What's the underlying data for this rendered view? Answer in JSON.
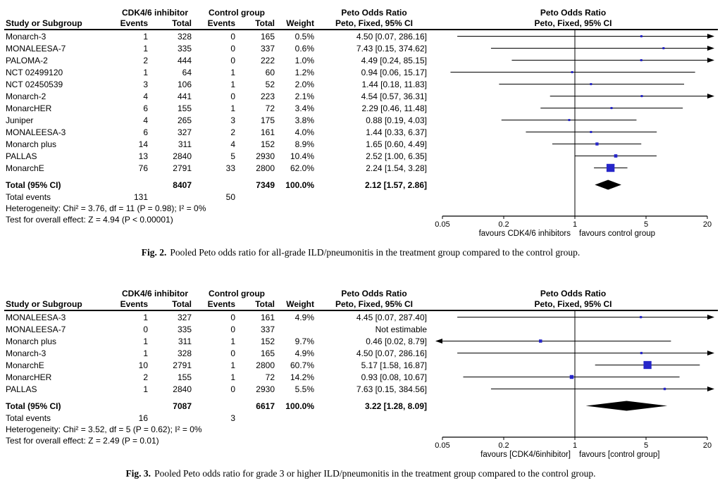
{
  "marker_color": "#2626c9",
  "diamond_color": "#000000",
  "chart_data": [
    {
      "type": "forest",
      "fig_label": "Fig. 2.",
      "caption": "Pooled Peto odds ratio for all-grade ILD/pneumonitis in the treatment group compared to the control group.",
      "columns": {
        "study": "Study or Subgroup",
        "group1": "CDK4/6 inhibitor",
        "group2": "Control group",
        "events": "Events",
        "total": "Total",
        "weight": "Weight",
        "or_header": "Peto Odds Ratio",
        "or_subheader": "Peto, Fixed, 95% CI"
      },
      "axis": {
        "scale": "log",
        "min": 0.05,
        "max": 20,
        "ticks": [
          0.05,
          0.2,
          1,
          5,
          20
        ],
        "favours_left": "favours CDK4/6 inhibitors",
        "favours_right": "favours control group"
      },
      "studies": [
        {
          "name": "Monarch-3",
          "events1": "1",
          "total1": "328",
          "events2": "0",
          "total2": "165",
          "weight": "0.5%",
          "w": 0.5,
          "or": 4.5,
          "lo": 0.07,
          "hi": 286.16,
          "ci_text": "4.50 [0.07, 286.16]"
        },
        {
          "name": "MONALEESA-7",
          "events1": "1",
          "total1": "335",
          "events2": "0",
          "total2": "337",
          "weight": "0.6%",
          "w": 0.6,
          "or": 7.43,
          "lo": 0.15,
          "hi": 374.62,
          "ci_text": "7.43 [0.15, 374.62]"
        },
        {
          "name": "PALOMA-2",
          "events1": "2",
          "total1": "444",
          "events2": "0",
          "total2": "222",
          "weight": "1.0%",
          "w": 1.0,
          "or": 4.49,
          "lo": 0.24,
          "hi": 85.15,
          "ci_text": "4.49 [0.24, 85.15]"
        },
        {
          "name": "NCT 02499120",
          "events1": "1",
          "total1": "64",
          "events2": "1",
          "total2": "60",
          "weight": "1.2%",
          "w": 1.2,
          "or": 0.94,
          "lo": 0.06,
          "hi": 15.17,
          "ci_text": "0.94 [0.06, 15.17]"
        },
        {
          "name": "NCT 02450539",
          "events1": "3",
          "total1": "106",
          "events2": "1",
          "total2": "52",
          "weight": "2.0%",
          "w": 2.0,
          "or": 1.44,
          "lo": 0.18,
          "hi": 11.83,
          "ci_text": "1.44 [0.18, 11.83]"
        },
        {
          "name": "Monarch-2",
          "events1": "4",
          "total1": "441",
          "events2": "0",
          "total2": "223",
          "weight": "2.1%",
          "w": 2.1,
          "or": 4.54,
          "lo": 0.57,
          "hi": 36.31,
          "ci_text": "4.54 [0.57, 36.31]"
        },
        {
          "name": "MonarcHER",
          "events1": "6",
          "total1": "155",
          "events2": "1",
          "total2": "72",
          "weight": "3.4%",
          "w": 3.4,
          "or": 2.29,
          "lo": 0.46,
          "hi": 11.48,
          "ci_text": "2.29 [0.46, 11.48]"
        },
        {
          "name": "Juniper",
          "events1": "4",
          "total1": "265",
          "events2": "3",
          "total2": "175",
          "weight": "3.8%",
          "w": 3.8,
          "or": 0.88,
          "lo": 0.19,
          "hi": 4.03,
          "ci_text": "0.88 [0.19, 4.03]"
        },
        {
          "name": "MONALEESA-3",
          "events1": "6",
          "total1": "327",
          "events2": "2",
          "total2": "161",
          "weight": "4.0%",
          "w": 4.0,
          "or": 1.44,
          "lo": 0.33,
          "hi": 6.37,
          "ci_text": "1.44 [0.33, 6.37]"
        },
        {
          "name": "Monarch plus",
          "events1": "14",
          "total1": "311",
          "events2": "4",
          "total2": "152",
          "weight": "8.9%",
          "w": 8.9,
          "or": 1.65,
          "lo": 0.6,
          "hi": 4.49,
          "ci_text": "1.65 [0.60, 4.49]"
        },
        {
          "name": "PALLAS",
          "events1": "13",
          "total1": "2840",
          "events2": "5",
          "total2": "2930",
          "weight": "10.4%",
          "w": 10.4,
          "or": 2.52,
          "lo": 1.0,
          "hi": 6.35,
          "ci_text": "2.52 [1.00, 6.35]"
        },
        {
          "name": "MonarchE",
          "events1": "76",
          "total1": "2791",
          "events2": "33",
          "total2": "2800",
          "weight": "62.0%",
          "w": 62.0,
          "or": 2.24,
          "lo": 1.54,
          "hi": 3.28,
          "ci_text": "2.24 [1.54, 3.28]"
        }
      ],
      "total": {
        "label": "Total (95% CI)",
        "total1": "8407",
        "total2": "7349",
        "weight": "100.0%",
        "or": 2.12,
        "lo": 1.57,
        "hi": 2.86,
        "ci_text": "2.12 [1.57, 2.86]"
      },
      "total_events": {
        "label": "Total events",
        "v1": "131",
        "v2": "50"
      },
      "heterogeneity": "Heterogeneity: Chi² = 3.76, df = 11 (P = 0.98); I² = 0%",
      "overall_effect": "Test for overall effect: Z = 4.94 (P < 0.00001)"
    },
    {
      "type": "forest",
      "fig_label": "Fig. 3.",
      "caption": "Pooled Peto odds ratio for grade 3 or higher ILD/pneumonitis in the treatment group compared to the control group.",
      "columns": {
        "study": "Study or Subgroup",
        "group1": "CDK4/6 inhibitor",
        "group2": "Control group",
        "events": "Events",
        "total": "Total",
        "weight": "Weight",
        "or_header": "Peto Odds Ratio",
        "or_subheader": "Peto, Fixed, 95% CI"
      },
      "axis": {
        "scale": "log",
        "min": 0.05,
        "max": 20,
        "ticks": [
          0.05,
          0.2,
          1,
          5,
          20
        ],
        "favours_left": "favours [CDK4/6inhibitor]",
        "favours_right": "favours [control group]"
      },
      "studies": [
        {
          "name": "MONALEESA-3",
          "events1": "1",
          "total1": "327",
          "events2": "0",
          "total2": "161",
          "weight": "4.9%",
          "w": 4.9,
          "or": 4.45,
          "lo": 0.07,
          "hi": 287.4,
          "ci_text": "4.45 [0.07, 287.40]"
        },
        {
          "name": "MONALEESA-7",
          "events1": "0",
          "total1": "335",
          "events2": "0",
          "total2": "337",
          "weight": "",
          "w": 0,
          "or": null,
          "lo": null,
          "hi": null,
          "ci_text": "Not estimable"
        },
        {
          "name": "Monarch plus",
          "events1": "1",
          "total1": "311",
          "events2": "1",
          "total2": "152",
          "weight": "9.7%",
          "w": 9.7,
          "or": 0.46,
          "lo": 0.02,
          "hi": 8.79,
          "ci_text": "0.46 [0.02, 8.79]"
        },
        {
          "name": "Monarch-3",
          "events1": "1",
          "total1": "328",
          "events2": "0",
          "total2": "165",
          "weight": "4.9%",
          "w": 4.9,
          "or": 4.5,
          "lo": 0.07,
          "hi": 286.16,
          "ci_text": "4.50 [0.07, 286.16]"
        },
        {
          "name": "MonarchE",
          "events1": "10",
          "total1": "2791",
          "events2": "1",
          "total2": "2800",
          "weight": "60.7%",
          "w": 60.7,
          "or": 5.17,
          "lo": 1.58,
          "hi": 16.87,
          "ci_text": "5.17 [1.58, 16.87]"
        },
        {
          "name": "MonarcHER",
          "events1": "2",
          "total1": "155",
          "events2": "1",
          "total2": "72",
          "weight": "14.2%",
          "w": 14.2,
          "or": 0.93,
          "lo": 0.08,
          "hi": 10.67,
          "ci_text": "0.93 [0.08, 10.67]"
        },
        {
          "name": "PALLAS",
          "events1": "1",
          "total1": "2840",
          "events2": "0",
          "total2": "2930",
          "weight": "5.5%",
          "w": 5.5,
          "or": 7.63,
          "lo": 0.15,
          "hi": 384.56,
          "ci_text": "7.63 [0.15, 384.56]"
        }
      ],
      "total": {
        "label": "Total (95% CI)",
        "total1": "7087",
        "total2": "6617",
        "weight": "100.0%",
        "or": 3.22,
        "lo": 1.28,
        "hi": 8.09,
        "ci_text": "3.22 [1.28, 8.09]"
      },
      "total_events": {
        "label": "Total events",
        "v1": "16",
        "v2": "3"
      },
      "heterogeneity": "Heterogeneity: Chi² = 3.52, df = 5 (P = 0.62); I² = 0%",
      "overall_effect": "Test for overall effect: Z = 2.49 (P = 0.01)"
    }
  ]
}
